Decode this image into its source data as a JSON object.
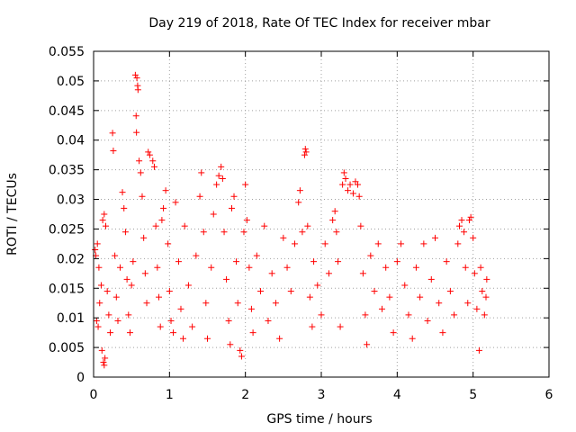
{
  "chart_data": {
    "type": "scatter",
    "title": "Day 219 of 2018, Rate Of TEC Index for receiver mbar",
    "xlabel": "GPS time / hours",
    "ylabel": "ROTI / TECUs",
    "xlim": [
      0,
      6
    ],
    "ylim": [
      0,
      0.055
    ],
    "xticks": [
      "0",
      "1",
      "2",
      "3",
      "4",
      "5",
      "6"
    ],
    "yticks": [
      "0",
      "0.005",
      "0.01",
      "0.015",
      "0.02",
      "0.025",
      "0.03",
      "0.035",
      "0.04",
      "0.045",
      "0.05",
      "0.055"
    ],
    "grid": true,
    "marker": "+",
    "color": "#ff0000",
    "series": [
      {
        "name": "ROTI",
        "points": [
          [
            0.02,
            0.0215
          ],
          [
            0.03,
            0.0205
          ],
          [
            0.05,
            0.0225
          ],
          [
            0.07,
            0.0185
          ],
          [
            0.04,
            0.0095
          ],
          [
            0.06,
            0.0085
          ],
          [
            0.08,
            0.0125
          ],
          [
            0.1,
            0.0155
          ],
          [
            0.11,
            0.0045
          ],
          [
            0.13,
            0.0025
          ],
          [
            0.14,
            0.002
          ],
          [
            0.15,
            0.0032
          ],
          [
            0.12,
            0.0265
          ],
          [
            0.14,
            0.0275
          ],
          [
            0.16,
            0.0255
          ],
          [
            0.18,
            0.0145
          ],
          [
            0.2,
            0.0105
          ],
          [
            0.22,
            0.0075
          ],
          [
            0.25,
            0.0412
          ],
          [
            0.26,
            0.0382
          ],
          [
            0.28,
            0.0205
          ],
          [
            0.3,
            0.0135
          ],
          [
            0.32,
            0.0095
          ],
          [
            0.35,
            0.0185
          ],
          [
            0.38,
            0.0312
          ],
          [
            0.4,
            0.0285
          ],
          [
            0.42,
            0.0245
          ],
          [
            0.44,
            0.0165
          ],
          [
            0.46,
            0.0105
          ],
          [
            0.48,
            0.0075
          ],
          [
            0.5,
            0.0155
          ],
          [
            0.52,
            0.0195
          ],
          [
            0.55,
            0.051
          ],
          [
            0.57,
            0.0505
          ],
          [
            0.58,
            0.0492
          ],
          [
            0.585,
            0.0485
          ],
          [
            0.56,
            0.0441
          ],
          [
            0.565,
            0.0413
          ],
          [
            0.6,
            0.0365
          ],
          [
            0.62,
            0.0345
          ],
          [
            0.64,
            0.0305
          ],
          [
            0.66,
            0.0235
          ],
          [
            0.68,
            0.0175
          ],
          [
            0.7,
            0.0125
          ],
          [
            0.72,
            0.038
          ],
          [
            0.74,
            0.0375
          ],
          [
            0.78,
            0.0365
          ],
          [
            0.8,
            0.0355
          ],
          [
            0.82,
            0.0255
          ],
          [
            0.84,
            0.0185
          ],
          [
            0.86,
            0.0135
          ],
          [
            0.88,
            0.0085
          ],
          [
            0.9,
            0.0265
          ],
          [
            0.92,
            0.0285
          ],
          [
            0.95,
            0.0315
          ],
          [
            0.98,
            0.0225
          ],
          [
            1.0,
            0.0145
          ],
          [
            1.02,
            0.0095
          ],
          [
            1.05,
            0.0075
          ],
          [
            1.08,
            0.0295
          ],
          [
            1.12,
            0.0195
          ],
          [
            1.15,
            0.0115
          ],
          [
            1.18,
            0.0065
          ],
          [
            1.2,
            0.0255
          ],
          [
            1.25,
            0.0155
          ],
          [
            1.3,
            0.0085
          ],
          [
            1.35,
            0.0205
          ],
          [
            1.4,
            0.0305
          ],
          [
            1.42,
            0.0345
          ],
          [
            1.45,
            0.0245
          ],
          [
            1.48,
            0.0125
          ],
          [
            1.5,
            0.0065
          ],
          [
            1.55,
            0.0185
          ],
          [
            1.58,
            0.0275
          ],
          [
            1.62,
            0.0325
          ],
          [
            1.65,
            0.034
          ],
          [
            1.68,
            0.0355
          ],
          [
            1.7,
            0.0335
          ],
          [
            1.72,
            0.0245
          ],
          [
            1.75,
            0.0165
          ],
          [
            1.78,
            0.0095
          ],
          [
            1.8,
            0.0055
          ],
          [
            1.82,
            0.0285
          ],
          [
            1.85,
            0.0305
          ],
          [
            1.88,
            0.0195
          ],
          [
            1.9,
            0.0125
          ],
          [
            1.93,
            0.0045
          ],
          [
            1.95,
            0.0035
          ],
          [
            1.98,
            0.0245
          ],
          [
            2.0,
            0.0325
          ],
          [
            2.02,
            0.0265
          ],
          [
            2.05,
            0.0185
          ],
          [
            2.08,
            0.0115
          ],
          [
            2.1,
            0.0075
          ],
          [
            2.15,
            0.0205
          ],
          [
            2.2,
            0.0145
          ],
          [
            2.25,
            0.0255
          ],
          [
            2.3,
            0.0095
          ],
          [
            2.35,
            0.0175
          ],
          [
            2.4,
            0.0125
          ],
          [
            2.45,
            0.0065
          ],
          [
            2.5,
            0.0235
          ],
          [
            2.55,
            0.0185
          ],
          [
            2.6,
            0.0145
          ],
          [
            2.65,
            0.0225
          ],
          [
            2.7,
            0.0295
          ],
          [
            2.72,
            0.0315
          ],
          [
            2.75,
            0.0245
          ],
          [
            2.78,
            0.0375
          ],
          [
            2.79,
            0.0385
          ],
          [
            2.8,
            0.038
          ],
          [
            2.82,
            0.0255
          ],
          [
            2.85,
            0.0135
          ],
          [
            2.88,
            0.0085
          ],
          [
            2.9,
            0.0195
          ],
          [
            2.95,
            0.0155
          ],
          [
            3.0,
            0.0105
          ],
          [
            3.05,
            0.0225
          ],
          [
            3.1,
            0.0175
          ],
          [
            3.15,
            0.0265
          ],
          [
            3.18,
            0.028
          ],
          [
            3.2,
            0.0245
          ],
          [
            3.22,
            0.0195
          ],
          [
            3.25,
            0.0085
          ],
          [
            3.28,
            0.0325
          ],
          [
            3.3,
            0.0345
          ],
          [
            3.32,
            0.0335
          ],
          [
            3.35,
            0.0315
          ],
          [
            3.38,
            0.0325
          ],
          [
            3.42,
            0.031
          ],
          [
            3.45,
            0.033
          ],
          [
            3.48,
            0.0325
          ],
          [
            3.5,
            0.0305
          ],
          [
            3.52,
            0.0255
          ],
          [
            3.55,
            0.0175
          ],
          [
            3.58,
            0.0105
          ],
          [
            3.6,
            0.0055
          ],
          [
            3.65,
            0.0205
          ],
          [
            3.7,
            0.0145
          ],
          [
            3.75,
            0.0225
          ],
          [
            3.8,
            0.0115
          ],
          [
            3.85,
            0.0185
          ],
          [
            3.9,
            0.0135
          ],
          [
            3.95,
            0.0075
          ],
          [
            4.0,
            0.0195
          ],
          [
            4.05,
            0.0225
          ],
          [
            4.1,
            0.0155
          ],
          [
            4.15,
            0.0105
          ],
          [
            4.2,
            0.0065
          ],
          [
            4.25,
            0.0185
          ],
          [
            4.3,
            0.0135
          ],
          [
            4.35,
            0.0225
          ],
          [
            4.4,
            0.0095
          ],
          [
            4.45,
            0.0165
          ],
          [
            4.5,
            0.0235
          ],
          [
            4.55,
            0.0125
          ],
          [
            4.6,
            0.0075
          ],
          [
            4.65,
            0.0195
          ],
          [
            4.7,
            0.0145
          ],
          [
            4.75,
            0.0105
          ],
          [
            4.8,
            0.0225
          ],
          [
            4.82,
            0.0255
          ],
          [
            4.85,
            0.0265
          ],
          [
            4.88,
            0.0245
          ],
          [
            4.9,
            0.0185
          ],
          [
            4.93,
            0.0125
          ],
          [
            4.95,
            0.0265
          ],
          [
            4.97,
            0.027
          ],
          [
            5.0,
            0.0235
          ],
          [
            5.02,
            0.0175
          ],
          [
            5.05,
            0.0115
          ],
          [
            5.08,
            0.0045
          ],
          [
            5.1,
            0.0185
          ],
          [
            5.12,
            0.0145
          ],
          [
            5.15,
            0.0105
          ],
          [
            5.17,
            0.0135
          ],
          [
            5.18,
            0.0165
          ]
        ]
      }
    ]
  }
}
